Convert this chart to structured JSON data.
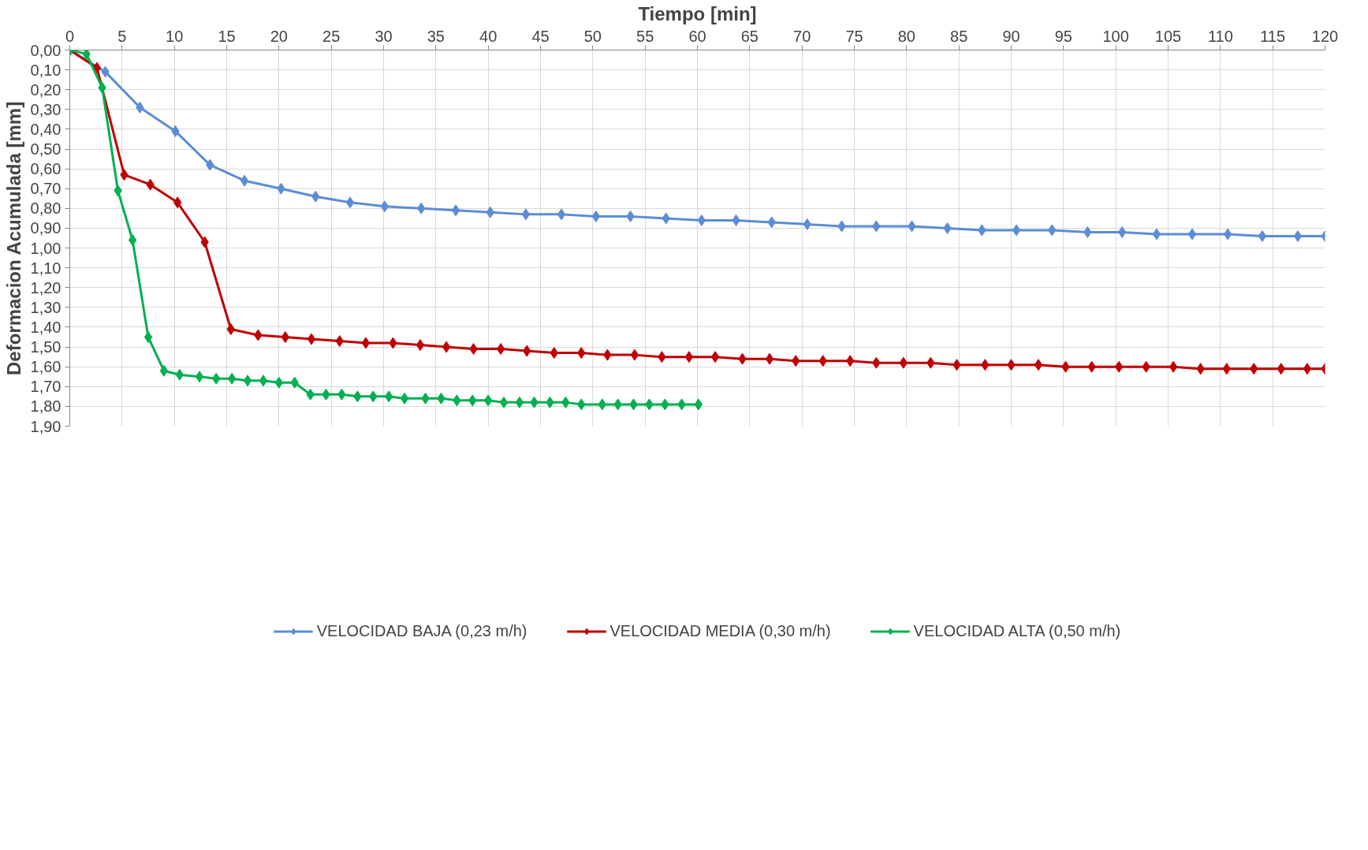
{
  "chart_data": {
    "type": "line",
    "xlabel": "Tiempo [min]",
    "ylabel": "Deformacion Acumulada [mm]",
    "xlim": [
      0,
      120
    ],
    "xticks": [
      0,
      5,
      10,
      15,
      20,
      25,
      30,
      35,
      40,
      45,
      50,
      55,
      60,
      65,
      70,
      75,
      80,
      85,
      90,
      95,
      100,
      105,
      110,
      115,
      120
    ],
    "ylim": [
      1.9,
      0
    ],
    "yticks": [
      {
        "value": 0,
        "label": "0,00"
      },
      {
        "value": 0.1,
        "label": "0,10"
      },
      {
        "value": 0.2,
        "label": "0,20"
      },
      {
        "value": 0.3,
        "label": "0,30"
      },
      {
        "value": 0.4,
        "label": "0,40"
      },
      {
        "value": 0.5,
        "label": "0,50"
      },
      {
        "value": 0.6,
        "label": "0,60"
      },
      {
        "value": 0.7,
        "label": "0,70"
      },
      {
        "value": 0.8,
        "label": "0,80"
      },
      {
        "value": 0.9,
        "label": "0,90"
      },
      {
        "value": 1.0,
        "label": "1,00"
      },
      {
        "value": 1.1,
        "label": "1,10"
      },
      {
        "value": 1.2,
        "label": "1,20"
      },
      {
        "value": 1.3,
        "label": "1,30"
      },
      {
        "value": 1.4,
        "label": "1,40"
      },
      {
        "value": 1.5,
        "label": "1,50"
      },
      {
        "value": 1.6,
        "label": "1,60"
      },
      {
        "value": 1.7,
        "label": "1,70"
      },
      {
        "value": 1.8,
        "label": "1,80"
      },
      {
        "value": 1.9,
        "label": "1,90"
      }
    ],
    "grid": true,
    "legend": "bottom",
    "marker": "diamond",
    "line_style": "solid",
    "series": [
      {
        "name": "VELOCIDAD BAJA (0,23 m/h)",
        "color": "#5b8dd6",
        "x": [
          0,
          3.4,
          6.7,
          10.1,
          13.4,
          16.7,
          20.2,
          23.5,
          26.8,
          30.1,
          33.6,
          36.9,
          40.2,
          43.6,
          47.0,
          50.3,
          53.6,
          57.0,
          60.4,
          63.7,
          67.1,
          70.5,
          73.8,
          77.1,
          80.5,
          83.9,
          87.2,
          90.5,
          93.9,
          97.3,
          100.6,
          103.9,
          107.3,
          110.7,
          114.0,
          117.4,
          120
        ],
        "values": [
          0,
          0.11,
          0.29,
          0.41,
          0.58,
          0.66,
          0.7,
          0.74,
          0.77,
          0.79,
          0.8,
          0.81,
          0.82,
          0.83,
          0.83,
          0.84,
          0.84,
          0.85,
          0.86,
          0.86,
          0.87,
          0.88,
          0.89,
          0.89,
          0.89,
          0.9,
          0.91,
          0.91,
          0.91,
          0.92,
          0.92,
          0.93,
          0.93,
          0.93,
          0.94,
          0.94,
          0.94
        ]
      },
      {
        "name": "VELOCIDAD MEDIA (0,30 m/h)",
        "color": "#c00000",
        "x": [
          0,
          2.6,
          5.2,
          7.7,
          10.3,
          12.9,
          15.4,
          18.0,
          20.6,
          23.1,
          25.8,
          28.3,
          30.9,
          33.5,
          36.0,
          38.6,
          41.2,
          43.7,
          46.3,
          48.9,
          51.4,
          54.0,
          56.6,
          59.2,
          61.7,
          64.3,
          66.9,
          69.4,
          72.0,
          74.6,
          77.1,
          79.7,
          82.3,
          84.8,
          87.5,
          90.0,
          92.6,
          95.2,
          97.7,
          100.3,
          102.9,
          105.5,
          108.1,
          110.6,
          113.2,
          115.8,
          118.3,
          120
        ],
        "values": [
          0,
          0.09,
          0.63,
          0.68,
          0.77,
          0.97,
          1.41,
          1.44,
          1.45,
          1.46,
          1.47,
          1.48,
          1.48,
          1.49,
          1.5,
          1.51,
          1.51,
          1.52,
          1.53,
          1.53,
          1.54,
          1.54,
          1.55,
          1.55,
          1.55,
          1.56,
          1.56,
          1.57,
          1.57,
          1.57,
          1.58,
          1.58,
          1.58,
          1.59,
          1.59,
          1.59,
          1.59,
          1.6,
          1.6,
          1.6,
          1.6,
          1.6,
          1.61,
          1.61,
          1.61,
          1.61,
          1.61,
          1.61
        ]
      },
      {
        "name": "VELOCIDAD ALTA (0,50 m/h)",
        "color": "#00b050",
        "x": [
          0,
          1.6,
          3.1,
          4.6,
          6.0,
          7.5,
          9.0,
          10.5,
          12.4,
          14.0,
          15.5,
          17.0,
          18.5,
          20.0,
          21.5,
          23.0,
          24.5,
          26.0,
          27.5,
          29.0,
          30.5,
          32.0,
          34.0,
          35.5,
          37.0,
          38.5,
          40.0,
          41.5,
          43.0,
          44.4,
          45.9,
          47.4,
          48.9,
          50.9,
          52.4,
          53.9,
          55.4,
          56.9,
          58.5,
          60.1
        ],
        "values": [
          0,
          0.02,
          0.19,
          0.71,
          0.96,
          1.45,
          1.62,
          1.64,
          1.65,
          1.66,
          1.66,
          1.67,
          1.67,
          1.68,
          1.68,
          1.74,
          1.74,
          1.74,
          1.75,
          1.75,
          1.75,
          1.76,
          1.76,
          1.76,
          1.77,
          1.77,
          1.77,
          1.78,
          1.78,
          1.78,
          1.78,
          1.78,
          1.79,
          1.79,
          1.79,
          1.79,
          1.79,
          1.79,
          1.79,
          1.79
        ]
      }
    ]
  }
}
